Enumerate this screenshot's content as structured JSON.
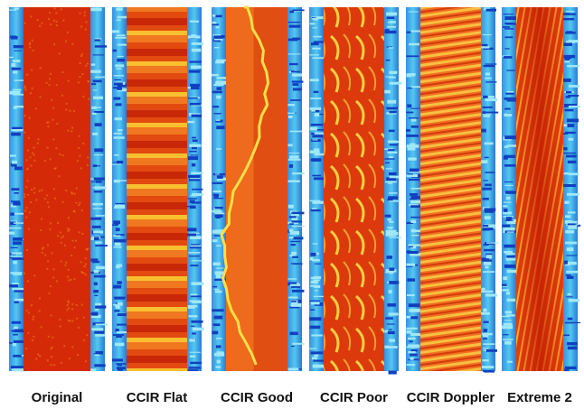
{
  "panels": [
    {
      "label": "Original"
    },
    {
      "label": "CCIR Flat"
    },
    {
      "label": "CCIR Good"
    },
    {
      "label": "CCIR Poor"
    },
    {
      "label": "CCIR Doppler"
    },
    {
      "label": "Extreme 2"
    }
  ]
}
